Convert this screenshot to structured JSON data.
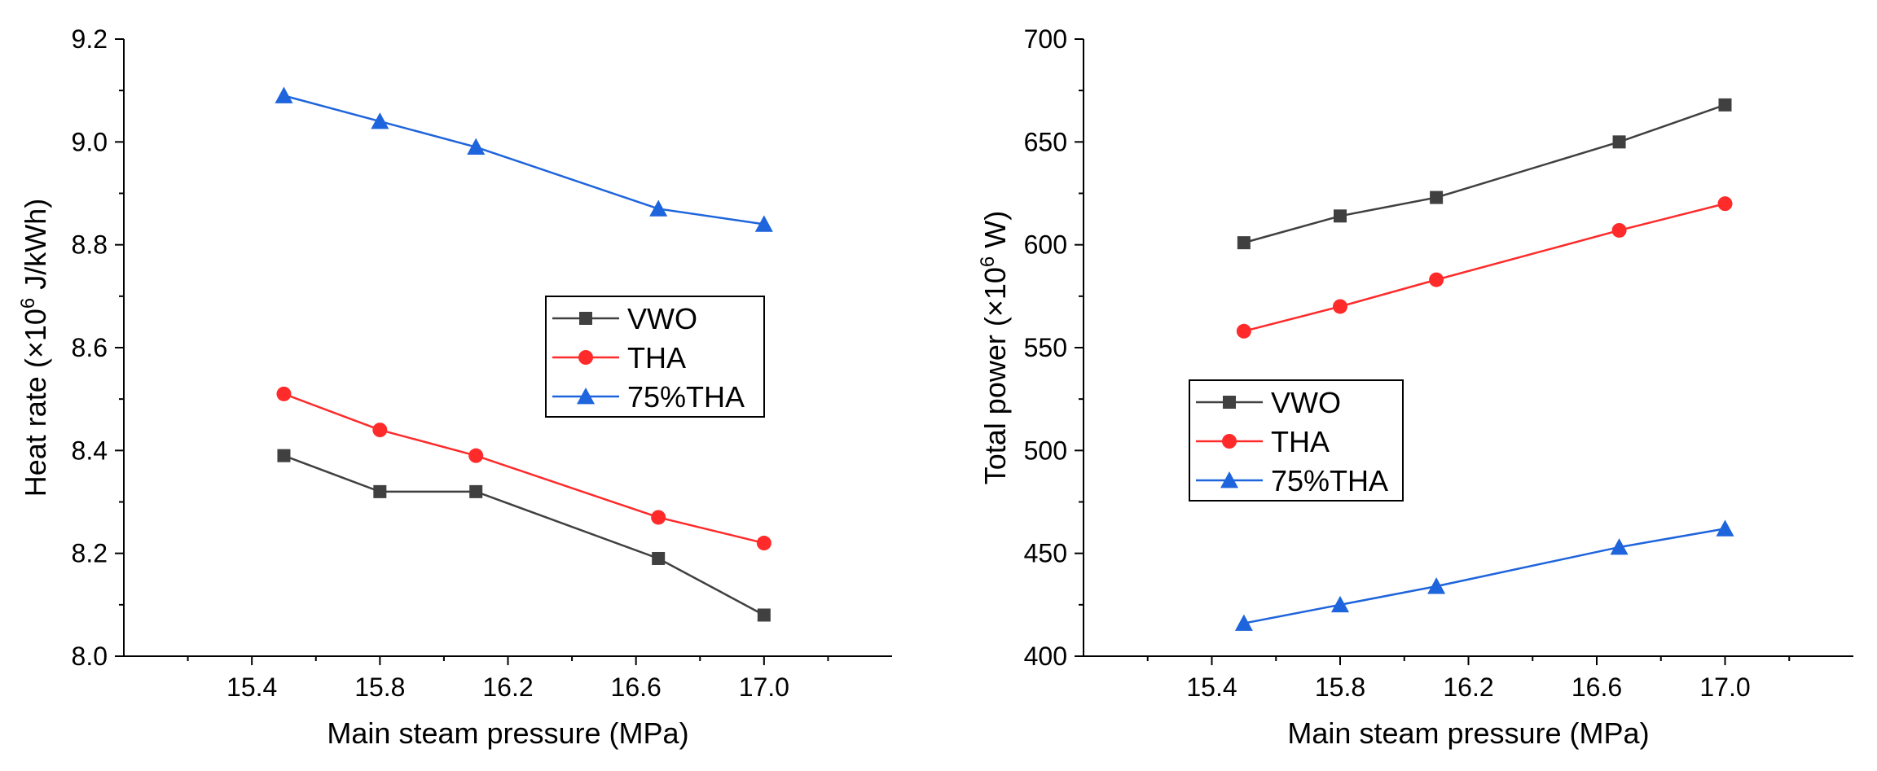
{
  "chart_data": [
    {
      "type": "line",
      "title": "",
      "xlabel": "Main steam pressure (MPa)",
      "ylabel_parts": [
        "Heat rate (×10",
        "6",
        " J/kWh)"
      ],
      "xlim": [
        15.0,
        17.4
      ],
      "ylim": [
        8.0,
        9.2
      ],
      "xticks": [
        15.4,
        15.8,
        16.2,
        16.6,
        17.0
      ],
      "xtick_labels": [
        "15.4",
        "15.8",
        "16.2",
        "16.6",
        "17.0"
      ],
      "yticks": [
        8.0,
        8.2,
        8.4,
        8.6,
        8.8,
        9.0,
        9.2
      ],
      "ytick_labels": [
        "8.0",
        "8.2",
        "8.4",
        "8.6",
        "8.8",
        "9.0",
        "9.2"
      ],
      "grid": false,
      "legend_position": "center-right",
      "series": [
        {
          "name": "VWO",
          "color": "#404040",
          "marker": "square",
          "x": [
            15.5,
            15.8,
            16.1,
            16.67,
            17.0
          ],
          "y": [
            8.39,
            8.32,
            8.32,
            8.19,
            8.08
          ]
        },
        {
          "name": "THA",
          "color": "#ff2a2a",
          "marker": "circle",
          "x": [
            15.5,
            15.8,
            16.1,
            16.67,
            17.0
          ],
          "y": [
            8.51,
            8.44,
            8.39,
            8.27,
            8.22
          ]
        },
        {
          "name": "75%THA",
          "color": "#1e64dc",
          "marker": "triangle",
          "x": [
            15.5,
            15.8,
            16.1,
            16.67,
            17.0
          ],
          "y": [
            9.09,
            9.04,
            8.99,
            8.87,
            8.84
          ]
        }
      ]
    },
    {
      "type": "line",
      "title": "",
      "xlabel": "Main steam pressure (MPa)",
      "ylabel_parts": [
        "Total power (×10",
        "6",
        " W)"
      ],
      "xlim": [
        15.0,
        17.4
      ],
      "ylim": [
        400,
        700
      ],
      "xticks": [
        15.4,
        15.8,
        16.2,
        16.6,
        17.0
      ],
      "xtick_labels": [
        "15.4",
        "15.8",
        "16.2",
        "16.6",
        "17.0"
      ],
      "yticks": [
        400,
        450,
        500,
        550,
        600,
        650,
        700
      ],
      "ytick_labels": [
        "400",
        "450",
        "500",
        "550",
        "600",
        "650",
        "700"
      ],
      "grid": false,
      "legend_position": "center-left",
      "series": [
        {
          "name": "VWO",
          "color": "#404040",
          "marker": "square",
          "x": [
            15.5,
            15.8,
            16.1,
            16.67,
            17.0
          ],
          "y": [
            601,
            614,
            623,
            650,
            668
          ]
        },
        {
          "name": "THA",
          "color": "#ff2a2a",
          "marker": "circle",
          "x": [
            15.5,
            15.8,
            16.1,
            16.67,
            17.0
          ],
          "y": [
            558,
            570,
            583,
            607,
            620
          ]
        },
        {
          "name": "75%THA",
          "color": "#1e64dc",
          "marker": "triangle",
          "x": [
            15.5,
            15.8,
            16.1,
            16.67,
            17.0
          ],
          "y": [
            416,
            425,
            434,
            453,
            462
          ]
        }
      ]
    }
  ]
}
